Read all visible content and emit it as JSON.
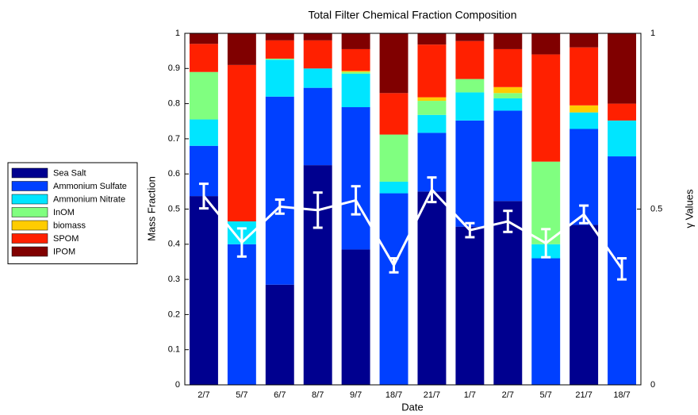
{
  "chart_data": {
    "type": "bar",
    "stacked": true,
    "title": "Total Filter Chemical Fraction Composition",
    "xlabel": "Date",
    "ylabel": "Mass Fraction",
    "y2label": "γ Values",
    "categories": [
      "2/7",
      "5/7",
      "6/7",
      "8/7",
      "9/7",
      "18/7",
      "21/7",
      "1/7",
      "2/7",
      "5/7",
      "21/7",
      "18/7"
    ],
    "series": [
      {
        "name": "Sea Salt",
        "color": "#00008f",
        "values": [
          0.537,
          0,
          0.285,
          0.625,
          0.385,
          0,
          0.55,
          0.45,
          0.523,
          0,
          0.455,
          0
        ]
      },
      {
        "name": "Ammonium Sulfate",
        "color": "#0040ff",
        "values": [
          0.143,
          0.4,
          0.535,
          0.22,
          0.405,
          0.545,
          0.167,
          0.302,
          0.257,
          0.36,
          0.273,
          0.65
        ]
      },
      {
        "name": "Ammonium Nitrate",
        "color": "#00e5ff",
        "values": [
          0.075,
          0.065,
          0.105,
          0.055,
          0.095,
          0.033,
          0.051,
          0.08,
          0.035,
          0.04,
          0.047,
          0.102
        ]
      },
      {
        "name": "InOM",
        "color": "#80ff80",
        "values": [
          0.135,
          0,
          0.003,
          0,
          0.005,
          0.134,
          0.04,
          0.038,
          0.015,
          0.235,
          0,
          0
        ]
      },
      {
        "name": "biomass",
        "color": "#ffcc00",
        "values": [
          0,
          0,
          0,
          0,
          0.003,
          0,
          0.01,
          0,
          0.017,
          0,
          0.02,
          0
        ]
      },
      {
        "name": "SPOM",
        "color": "#ff2000",
        "values": [
          0.08,
          0.445,
          0.052,
          0.08,
          0.062,
          0.118,
          0.15,
          0.108,
          0.108,
          0.305,
          0.165,
          0.048
        ]
      },
      {
        "name": "IPOM",
        "color": "#800000",
        "values": [
          0.03,
          0.09,
          0.02,
          0.02,
          0.045,
          0.17,
          0.032,
          0.022,
          0.045,
          0.06,
          0.04,
          0.2
        ]
      }
    ],
    "line": {
      "color": "#ffffff",
      "axis": "y2",
      "values": [
        0.537,
        0.405,
        0.507,
        0.497,
        0.525,
        0.34,
        0.555,
        0.44,
        0.465,
        0.403,
        0.485,
        0.33
      ],
      "errors": [
        0.035,
        0.04,
        0.02,
        0.05,
        0.04,
        0.02,
        0.035,
        0.02,
        0.03,
        0.04,
        0.025,
        0.03
      ]
    },
    "ylim": [
      0,
      1
    ],
    "yticks": [
      0,
      0.1,
      0.2,
      0.3,
      0.4,
      0.5,
      0.6,
      0.7,
      0.8,
      0.9,
      1
    ],
    "y2lim": [
      0,
      1
    ],
    "y2ticks": [
      0,
      0.5,
      1
    ],
    "legend": "outside-left"
  }
}
